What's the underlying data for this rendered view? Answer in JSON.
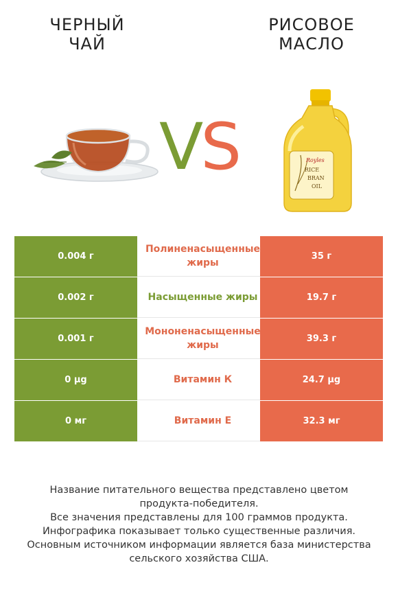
{
  "header": {
    "left_title_line1": "ЧЕРНЫЙ",
    "left_title_line2": "ЧАЙ",
    "right_title_line1": "РИСОВОЕ",
    "right_title_line2": "МАСЛО",
    "vs_v": "V",
    "vs_s": "S"
  },
  "colors": {
    "left_product": "#7b9c34",
    "right_product": "#e86a4b"
  },
  "bottle_label": {
    "brand": "Royles",
    "line1": "RICE",
    "line2": "BRAN",
    "line3": "OIL"
  },
  "rows": [
    {
      "left": "0.004 г",
      "label": "Полиненасыщенные жиры",
      "right": "35 г",
      "winner": "right"
    },
    {
      "left": "0.002 г",
      "label": "Насыщенные жиры",
      "right": "19.7 г",
      "winner": "left"
    },
    {
      "left": "0.001 г",
      "label": "Мононенасыщенные жиры",
      "right": "39.3 г",
      "winner": "right"
    },
    {
      "left": "0 µg",
      "label": "Витамин К",
      "right": "24.7 µg",
      "winner": "right"
    },
    {
      "left": "0 мг",
      "label": "Витамин Е",
      "right": "32.3 мг",
      "winner": "right"
    }
  ],
  "footnote": {
    "line1": "Название питательного вещества представлено цветом",
    "line2": "продукта-победителя.",
    "line3": "Все значения представлены для 100 граммов продукта.",
    "line4": "Инфографика показывает только существенные различия.",
    "line5": "Основным источником информации является база министерства",
    "line6": "сельского хозяйства США."
  }
}
